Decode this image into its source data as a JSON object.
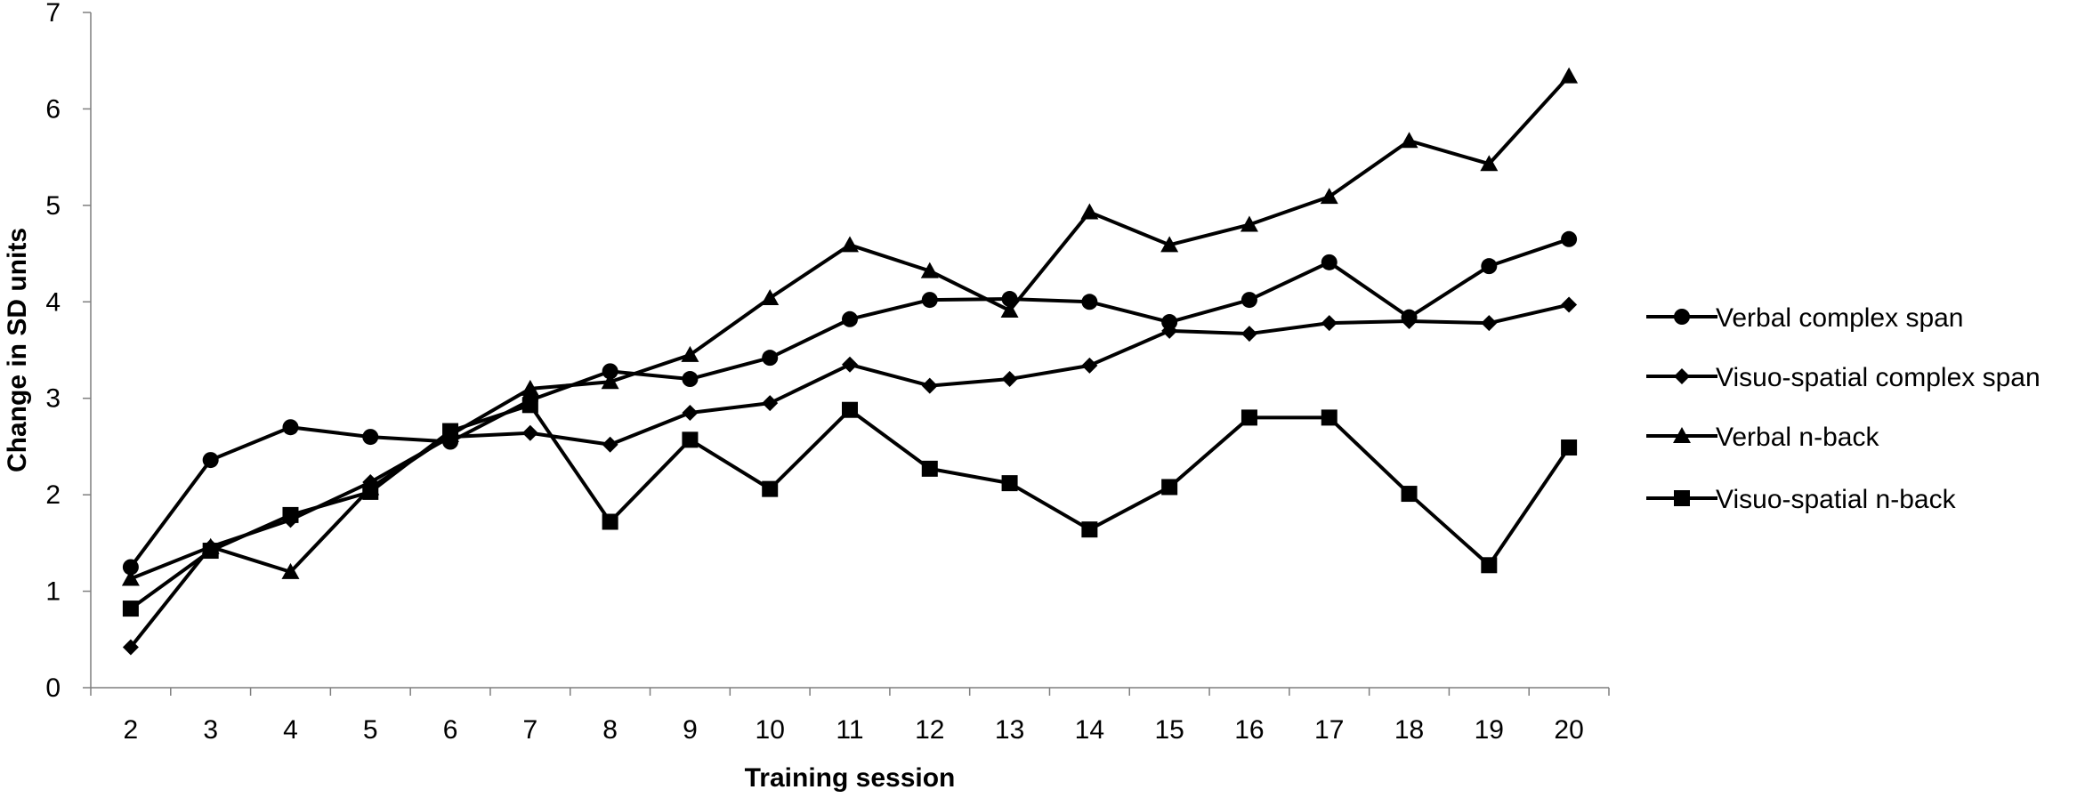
{
  "chart_data": {
    "type": "line",
    "title": "",
    "xlabel": "Training session",
    "ylabel": "Change in SD units",
    "ylim": [
      0,
      7
    ],
    "yticks": [
      0,
      1,
      2,
      3,
      4,
      5,
      6,
      7
    ],
    "categories": [
      "2",
      "3",
      "4",
      "5",
      "6",
      "7",
      "8",
      "9",
      "10",
      "11",
      "12",
      "13",
      "14",
      "15",
      "16",
      "17",
      "18",
      "19",
      "20"
    ],
    "grid": false,
    "legend_position": "right",
    "series": [
      {
        "name": "Verbal complex span",
        "marker": "circle",
        "values": [
          1.25,
          2.36,
          2.7,
          2.6,
          2.55,
          2.98,
          3.28,
          3.2,
          3.42,
          3.82,
          4.02,
          4.03,
          4.0,
          3.79,
          4.02,
          4.41,
          3.84,
          4.37,
          4.65
        ]
      },
      {
        "name": "Visuo-spatial complex span",
        "marker": "diamond",
        "values": [
          0.42,
          1.46,
          1.74,
          2.13,
          2.6,
          2.64,
          2.52,
          2.85,
          2.95,
          3.35,
          3.13,
          3.2,
          3.34,
          3.7,
          3.67,
          3.78,
          3.8,
          3.78,
          3.97
        ]
      },
      {
        "name": "Verbal n-back",
        "marker": "triangle",
        "values": [
          1.13,
          1.46,
          1.2,
          2.07,
          2.62,
          3.1,
          3.17,
          3.45,
          4.04,
          4.59,
          4.32,
          3.91,
          4.93,
          4.59,
          4.8,
          5.09,
          5.67,
          5.43,
          6.34
        ]
      },
      {
        "name": "Visuo-spatial n-back",
        "marker": "square",
        "values": [
          0.82,
          1.42,
          1.79,
          2.03,
          2.66,
          2.93,
          1.72,
          2.57,
          2.06,
          2.88,
          2.27,
          2.12,
          1.64,
          2.08,
          2.8,
          2.8,
          2.01,
          1.27,
          2.49
        ]
      }
    ]
  }
}
